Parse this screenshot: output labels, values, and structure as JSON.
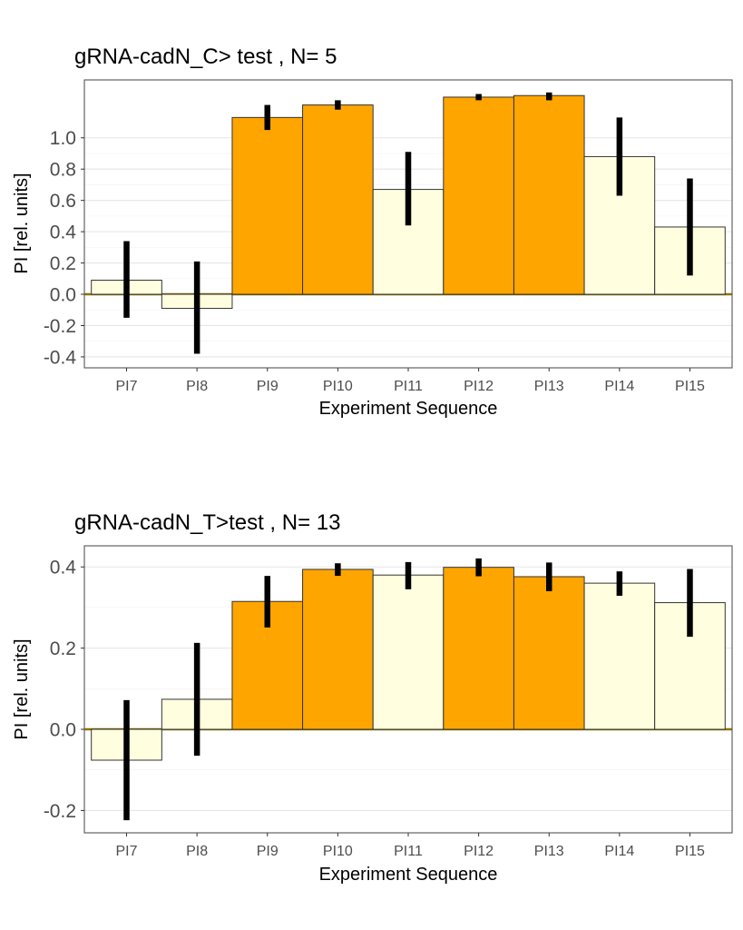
{
  "chart_data": [
    {
      "type": "bar",
      "title": "gRNA-cadN_C> test , N= 5",
      "xlabel": "Experiment Sequence",
      "ylabel": "PI [rel. units]",
      "categories": [
        "PI7",
        "PI8",
        "PI9",
        "PI10",
        "PI11",
        "PI12",
        "PI13",
        "PI14",
        "PI15"
      ],
      "values": [
        0.09,
        -0.09,
        1.13,
        1.21,
        0.67,
        1.26,
        1.27,
        0.88,
        0.43
      ],
      "error_low": [
        -0.15,
        -0.38,
        1.05,
        1.18,
        0.44,
        1.24,
        1.24,
        0.63,
        0.12
      ],
      "error_high": [
        0.34,
        0.21,
        1.21,
        1.24,
        0.91,
        1.28,
        1.29,
        1.13,
        0.74
      ],
      "bar_fill": [
        "light",
        "light",
        "orange",
        "orange",
        "light",
        "orange",
        "orange",
        "light",
        "light"
      ],
      "yticks": [
        -0.4,
        -0.2,
        0.0,
        0.2,
        0.4,
        0.6,
        0.8,
        1.0
      ],
      "ytick_labels": [
        "-0.4",
        "-0.2",
        "0.0",
        "0.2",
        "0.4",
        "0.6",
        "0.8",
        "1.0"
      ],
      "ylim": [
        -0.47,
        1.37
      ],
      "grid": true,
      "legend": "none"
    },
    {
      "type": "bar",
      "title": "gRNA-cadN_T>test , N= 13",
      "xlabel": "Experiment Sequence",
      "ylabel": "PI [rel. units]",
      "categories": [
        "PI7",
        "PI8",
        "PI9",
        "PI10",
        "PI11",
        "PI12",
        "PI13",
        "PI14",
        "PI15"
      ],
      "values": [
        -0.076,
        0.074,
        0.315,
        0.394,
        0.38,
        0.399,
        0.376,
        0.36,
        0.312
      ],
      "error_low": [
        -0.224,
        -0.065,
        0.251,
        0.378,
        0.345,
        0.377,
        0.34,
        0.329,
        0.228
      ],
      "error_high": [
        0.072,
        0.213,
        0.378,
        0.409,
        0.412,
        0.421,
        0.411,
        0.389,
        0.395
      ],
      "bar_fill": [
        "light",
        "light",
        "orange",
        "orange",
        "light",
        "orange",
        "orange",
        "light",
        "light"
      ],
      "yticks": [
        -0.2,
        0.0,
        0.2,
        0.4
      ],
      "ytick_labels": [
        "-0.2",
        "0.0",
        "0.2",
        "0.4"
      ],
      "ylim": [
        -0.255,
        0.452
      ],
      "grid": true,
      "legend": "none"
    }
  ],
  "colors": {
    "orange": "#FFA500",
    "light": "#FFFFE0",
    "zero_line": "#8B7500",
    "error_bar": "#000000",
    "grid": "#e5e5e5",
    "panel_border": "#555555"
  }
}
